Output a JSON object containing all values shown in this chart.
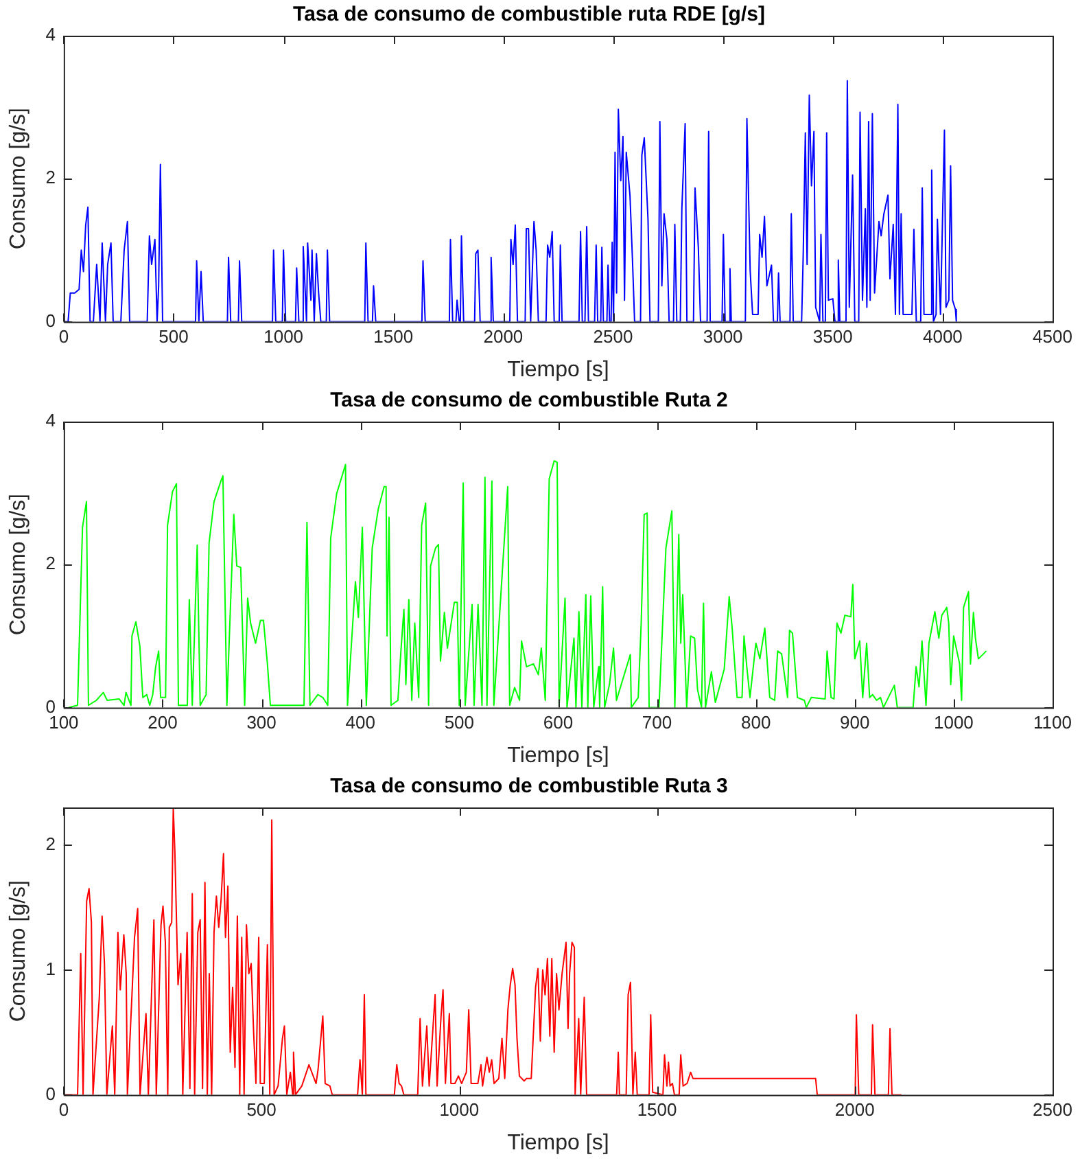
{
  "chart_data": [
    {
      "type": "line",
      "title": "Tasa de consumo de combustible ruta RDE [g/s]",
      "xlabel": "Tiempo [s]",
      "ylabel": "Consumo [g/s]",
      "xlim": [
        0,
        4500
      ],
      "xticks": [
        0,
        500,
        1000,
        1500,
        2000,
        2500,
        3000,
        3500,
        4000,
        4500
      ],
      "ylim": [
        0,
        4
      ],
      "yticks": [
        0,
        2,
        4
      ],
      "x": [
        0,
        20,
        30,
        50,
        70,
        80,
        90,
        100,
        110,
        120,
        135,
        150,
        165,
        175,
        190,
        200,
        215,
        225,
        260,
        275,
        290,
        300,
        380,
        390,
        400,
        415,
        425,
        432,
        440,
        450,
        600,
        605,
        615,
        625,
        635,
        745,
        750,
        760,
        795,
        800,
        810,
        950,
        955,
        965,
        995,
        1000,
        1010,
        1055,
        1060,
        1070,
        1085,
        1090,
        1105,
        1110,
        1125,
        1130,
        1140,
        1150,
        1160,
        1170,
        1195,
        1200,
        1210,
        1370,
        1375,
        1385,
        1405,
        1410,
        1420,
        1630,
        1635,
        1645,
        1755,
        1760,
        1770,
        1785,
        1790,
        1800,
        1805,
        1810,
        1820,
        1870,
        1875,
        1885,
        1895,
        1940,
        1945,
        1955,
        2030,
        2035,
        2045,
        2055,
        2065,
        2100,
        2105,
        2115,
        2125,
        2140,
        2150,
        2160,
        2195,
        2202,
        2212,
        2223,
        2232,
        2255,
        2260,
        2268,
        2345,
        2352,
        2360,
        2372,
        2380,
        2388,
        2416,
        2423,
        2430,
        2444,
        2449,
        2456,
        2472,
        2477,
        2484,
        2491,
        2496,
        2502,
        2509,
        2516,
        2524,
        2535,
        2545,
        2552,
        2560,
        2577,
        2588,
        2598,
        2625,
        2631,
        2642,
        2659,
        2668,
        2706,
        2713,
        2722,
        2732,
        2745,
        2755,
        2775,
        2781,
        2790,
        2806,
        2813,
        2828,
        2836,
        2866,
        2873,
        2888,
        2898,
        2928,
        2935,
        2942,
        2996,
        3002,
        3010,
        3027,
        3032,
        3038,
        3102,
        3109,
        3124,
        3135,
        3160,
        3167,
        3178,
        3189,
        3200,
        3221,
        3230,
        3248,
        3253,
        3260,
        3305,
        3311,
        3320,
        3358,
        3365,
        3375,
        3383,
        3393,
        3403,
        3414,
        3422,
        3440,
        3446,
        3455,
        3466,
        3472,
        3480,
        3500,
        3510,
        3520,
        3525,
        3532,
        3560,
        3566,
        3575,
        3590,
        3600,
        3618,
        3624,
        3635,
        3648,
        3655,
        3663,
        3670,
        3680,
        3690,
        3710,
        3720,
        3732,
        3751,
        3760,
        3775,
        3785,
        3796,
        3803,
        3811,
        3820,
        3860,
        3869,
        3880,
        3900,
        3907,
        3915,
        3945,
        3950,
        3958,
        3970,
        3976,
        3990,
        4008,
        4015,
        4028,
        4036,
        4045,
        4058,
        4062
      ],
      "series": [
        {
          "color": "#0000ff",
          "values": [
            0,
            0,
            0.4,
            0.4,
            0.45,
            1.0,
            0.7,
            1.35,
            1.6,
            0,
            0,
            0.8,
            0,
            1.1,
            0,
            0.8,
            1.1,
            0,
            0,
            1.0,
            1.4,
            0,
            0,
            1.2,
            0.8,
            1.15,
            0,
            0.5,
            2.2,
            0,
            0,
            0.85,
            0,
            0.7,
            0,
            0,
            0.9,
            0,
            0,
            0.85,
            0,
            0,
            1.0,
            0,
            0,
            1.0,
            0,
            0,
            0.75,
            0,
            0,
            1.05,
            0,
            1.1,
            0.3,
            1.0,
            0,
            0.95,
            0.4,
            0,
            0,
            1.0,
            0,
            0,
            1.1,
            0,
            0,
            0.5,
            0,
            0,
            0.85,
            0,
            0,
            1.15,
            0,
            0,
            0.3,
            0,
            0,
            1.2,
            0,
            0,
            0.95,
            1.0,
            0,
            0,
            0.9,
            0,
            0,
            1.15,
            0.8,
            1.35,
            0,
            0,
            1.3,
            1.3,
            0,
            1.4,
            1.0,
            0,
            0,
            1.07,
            0.9,
            1.26,
            0,
            0,
            1.07,
            0,
            0,
            1.26,
            0,
            0,
            1.33,
            0,
            0,
            1.07,
            0,
            0,
            1.04,
            0,
            0,
            0.79,
            0,
            0,
            1.11,
            0,
            2.37,
            0.4,
            2.97,
            1.97,
            2.59,
            0.3,
            2.37,
            1.76,
            0.89,
            0,
            0,
            2.33,
            2.57,
            1.43,
            0,
            0,
            2.8,
            0.5,
            1.51,
            1.15,
            0,
            0,
            1.36,
            0,
            0,
            1.58,
            2.77,
            0,
            0,
            1.87,
            1.04,
            0,
            0,
            2.66,
            0,
            0,
            1.22,
            0,
            0,
            0.74,
            0,
            0,
            2.84,
            0.71,
            0.1,
            0.1,
            1.22,
            0.9,
            1.47,
            0.5,
            0.79,
            0,
            0,
            0.68,
            0,
            0,
            1.51,
            0,
            0,
            0.89,
            2.64,
            0.8,
            3.17,
            1.9,
            2.66,
            0.2,
            0,
            1.22,
            0,
            0,
            2.64,
            0.3,
            0.32,
            0,
            0,
            0.86,
            0,
            0,
            3.37,
            0.2,
            2.05,
            0,
            0,
            2.93,
            0.3,
            1.58,
            0.2,
            2.8,
            0.3,
            2.91,
            0.4,
            1.4,
            1.2,
            1.5,
            1.77,
            0.6,
            1.36,
            0.1,
            3.04,
            0.1,
            1.51,
            0.1,
            0.1,
            1.29,
            0,
            0,
            1.87,
            0.1,
            0.1,
            2.12,
            0,
            0.1,
            1.43,
            0.1,
            2.68,
            0.2,
            0.3,
            2.18,
            0.3,
            0.17,
            0
          ]
        }
      ]
    },
    {
      "type": "line",
      "title": "Tasa de consumo de combustible Ruta 2",
      "xlabel": "Tiempo [s]",
      "ylabel": "Consumo [g/s]",
      "xlim": [
        100,
        1100
      ],
      "xticks": [
        100,
        200,
        300,
        400,
        500,
        600,
        700,
        800,
        900,
        1000,
        1100
      ],
      "ylim": [
        0,
        4
      ],
      "yticks": [
        0,
        2,
        4
      ],
      "x": [
        105,
        114,
        119,
        123,
        125,
        133,
        140,
        144,
        156,
        161,
        163,
        168,
        169,
        173,
        177,
        180,
        184,
        187,
        190,
        193,
        196,
        198,
        203,
        205,
        210,
        214,
        216,
        225,
        227,
        230,
        235,
        238,
        244,
        247,
        252,
        259,
        261,
        265,
        272,
        275,
        279,
        283,
        286,
        289,
        294,
        299,
        302,
        306,
        309,
        343,
        346,
        349,
        357,
        362,
        367,
        370,
        376,
        385,
        387,
        395,
        398,
        402,
        406,
        412,
        418,
        424,
        426,
        427,
        429,
        431,
        438,
        441,
        444,
        446,
        449,
        452,
        455,
        459,
        462,
        466,
        469,
        471,
        476,
        479,
        481,
        485,
        488,
        495,
        498,
        500,
        504,
        506,
        513,
        515,
        519,
        523,
        526,
        528,
        533,
        535,
        549,
        551,
        556,
        561,
        563,
        568,
        575,
        580,
        583,
        587,
        591,
        596,
        599,
        601,
        607,
        609,
        616,
        618,
        621,
        624,
        628,
        630,
        633,
        636,
        641,
        642,
        645,
        647,
        652,
        656,
        659,
        673,
        674,
        681,
        684,
        687,
        690,
        692,
        702,
        709,
        715,
        718,
        722,
        724,
        726,
        730,
        734,
        738,
        741,
        745,
        747,
        749,
        755,
        759,
        768,
        773,
        776,
        781,
        786,
        788,
        791,
        794,
        800,
        804,
        809,
        814,
        819,
        822,
        826,
        832,
        834,
        837,
        842,
        849,
        851,
        856,
        870,
        872,
        876,
        879,
        882,
        886,
        890,
        896,
        898,
        900,
        905,
        908,
        912,
        915,
        918,
        922,
        926,
        929,
        940,
        943,
        959,
        962,
        965,
        968,
        972,
        975,
        981,
        985,
        988,
        993,
        995,
        997,
        1000,
        1006,
        1008,
        1010,
        1015,
        1017,
        1020,
        1022,
        1025,
        1033
      ],
      "series": [
        {
          "color": "#00ff00",
          "values": [
            0,
            0.03,
            2.52,
            2.88,
            0.03,
            0.1,
            0.21,
            0.1,
            0.12,
            0.03,
            0.21,
            0.03,
            1.0,
            1.2,
            0.86,
            0.14,
            0.18,
            0.03,
            0.18,
            0.57,
            0.79,
            0.14,
            0.14,
            2.55,
            3.02,
            3.13,
            0.03,
            0.03,
            1.51,
            0.03,
            2.27,
            0.03,
            0.18,
            2.3,
            2.88,
            3.17,
            3.24,
            0.03,
            2.7,
            1.98,
            1.96,
            0.03,
            1.53,
            1.18,
            0.9,
            1.22,
            1.22,
            0.61,
            0.03,
            0.03,
            2.59,
            0.03,
            0.18,
            0.14,
            0.03,
            2.37,
            2.99,
            3.4,
            0.03,
            1.76,
            1.26,
            2.52,
            0.03,
            2.23,
            2.77,
            3.09,
            3.09,
            1.0,
            2.66,
            0.03,
            0.1,
            0.79,
            1.37,
            0.32,
            1.51,
            0.1,
            1.18,
            0.14,
            2.55,
            2.86,
            0.03,
            1.98,
            2.23,
            2.28,
            0.65,
            1.33,
            0.83,
            1.47,
            1.47,
            0.03,
            3.14,
            0.03,
            1.44,
            0.03,
            1.44,
            0.03,
            3.22,
            0.03,
            3.17,
            0.03,
            3.09,
            0.03,
            0.28,
            0.1,
            0.93,
            0.57,
            0.61,
            0.46,
            0.83,
            0.1,
            3.2,
            3.45,
            3.43,
            0.03,
            1.53,
            0,
            0.97,
            0,
            1.34,
            0,
            1.58,
            0,
            1.56,
            0,
            0.57,
            0,
            1.69,
            0,
            0.33,
            0.83,
            0.1,
            0.74,
            0,
            0.14,
            1.18,
            2.7,
            2.72,
            0,
            0,
            2.23,
            2.75,
            0,
            2.42,
            0.9,
            1.58,
            0,
            1.0,
            0.97,
            0.25,
            0,
            1.46,
            0,
            0.5,
            0.07,
            0.54,
            1.55,
            1.11,
            0.14,
            0.14,
            1.0,
            0.54,
            0.14,
            0.9,
            0.68,
            1.11,
            0.14,
            0.1,
            0.79,
            0.75,
            0.14,
            1.08,
            1.04,
            0.14,
            0.1,
            0,
            0.14,
            0.12,
            0.79,
            0.14,
            0.12,
            1.18,
            1.04,
            1.29,
            1.27,
            1.72,
            0.68,
            0.93,
            0.14,
            0.9,
            0.14,
            0.18,
            0.1,
            0.14,
            0,
            0.31,
            0,
            0,
            0.57,
            0.29,
            0.93,
            0.03,
            0.9,
            1.34,
            0.97,
            1.29,
            1.4,
            1.18,
            0.32,
            1.0,
            0.61,
            0.1,
            1.4,
            1.62,
            0.61,
            1.33,
            0.97,
            0.68,
            0.79
          ]
        }
      ]
    },
    {
      "type": "line",
      "title": "Tasa de consumo de combustible Ruta 3",
      "xlabel": "Tiempo [s]",
      "ylabel": "Consumo [g/s]",
      "xlim": [
        0,
        2500
      ],
      "xticks": [
        0,
        500,
        1000,
        1500,
        2000,
        2500
      ],
      "ylim": [
        0,
        2.3
      ],
      "yticks": [
        0,
        1,
        2
      ],
      "x": [
        0,
        35,
        43,
        49,
        58,
        64,
        70,
        74,
        90,
        97,
        103,
        109,
        123,
        129,
        137,
        143,
        152,
        158,
        161,
        172,
        179,
        187,
        193,
        208,
        214,
        228,
        234,
        246,
        251,
        257,
        263,
        267,
        273,
        277,
        281,
        284,
        289,
        296,
        301,
        312,
        319,
        325,
        331,
        339,
        345,
        351,
        357,
        363,
        368,
        374,
        380,
        386,
        392,
        398,
        404,
        409,
        415,
        421,
        427,
        433,
        439,
        445,
        450,
        456,
        462,
        468,
        474,
        480,
        486,
        493,
        497,
        507,
        515,
        521,
        526,
        532,
        542,
        553,
        558,
        564,
        573,
        579,
        581,
        586,
        602,
        620,
        638,
        643,
        655,
        661,
        673,
        679,
        743,
        749,
        755,
        760,
        764,
        836,
        842,
        848,
        854,
        860,
        895,
        901,
        907,
        918,
        924,
        939,
        944,
        954,
        959,
        965,
        975,
        979,
        989,
        998,
        1006,
        1018,
        1024,
        1030,
        1047,
        1055,
        1059,
        1070,
        1076,
        1082,
        1088,
        1100,
        1108,
        1115,
        1123,
        1129,
        1135,
        1141,
        1146,
        1152,
        1164,
        1170,
        1182,
        1193,
        1199,
        1205,
        1211,
        1217,
        1223,
        1229,
        1234,
        1240,
        1246,
        1252,
        1260,
        1270,
        1275,
        1279,
        1285,
        1291,
        1293,
        1302,
        1307,
        1316,
        1322,
        1398,
        1402,
        1405,
        1422,
        1427,
        1433,
        1439,
        1445,
        1450,
        1480,
        1484,
        1489,
        1515,
        1519,
        1525,
        1529,
        1533,
        1539,
        1544,
        1556,
        1560,
        1566,
        1576,
        1585,
        1591,
        1901,
        1905,
        2001,
        2004,
        2010,
        2042,
        2045,
        2051,
        2085,
        2089,
        2094,
        2118
      ],
      "series": [
        {
          "color": "#ff0000",
          "values": [
            0,
            0,
            1.13,
            0,
            1.55,
            1.65,
            1.38,
            0,
            0.78,
            1.43,
            1.05,
            0,
            0.55,
            0,
            1.3,
            0.84,
            1.28,
            0.97,
            0,
            0.76,
            1.26,
            1.49,
            0,
            0.65,
            0,
            1.4,
            0,
            1.36,
            1.51,
            1.22,
            0,
            1.34,
            1.38,
            2.3,
            1.95,
            1.55,
            0.88,
            1.13,
            0,
            1.3,
            0.05,
            1.61,
            0,
            1.3,
            1.4,
            0.05,
            1.7,
            0,
            0.97,
            0,
            1.3,
            1.59,
            1.34,
            1.57,
            1.93,
            1.26,
            1.67,
            0.34,
            0.86,
            0.22,
            1.43,
            0,
            1.26,
            0,
            1.36,
            0.97,
            1.05,
            0.51,
            0.09,
            1.26,
            0.09,
            0.09,
            1.2,
            0,
            2.2,
            0,
            0.07,
            0.45,
            0.55,
            0,
            0.18,
            0,
            0.34,
            0,
            0.07,
            0.24,
            0.09,
            0.2,
            0.63,
            0.09,
            0.07,
            0,
            0,
            0.28,
            0,
            0.8,
            0,
            0,
            0.24,
            0.09,
            0.07,
            0,
            0,
            0.61,
            0.07,
            0.55,
            0.07,
            0.8,
            0.07,
            0.63,
            0.84,
            0.09,
            0.65,
            0.09,
            0.09,
            0.15,
            0.09,
            0.18,
            0.68,
            0.09,
            0.09,
            0.24,
            0.07,
            0.3,
            0.18,
            0.28,
            0.09,
            0.13,
            0.45,
            0.13,
            0.68,
            0.88,
            1.01,
            0.88,
            0.45,
            0.15,
            0.11,
            0.13,
            0.13,
            0.86,
            1.01,
            0.43,
            1.0,
            0.8,
            1.09,
            0.47,
            1.09,
            0.34,
            0.97,
            0.68,
            0.97,
            1.22,
            0.53,
            0.97,
            1.22,
            1.18,
            0,
            0.61,
            0,
            0.78,
            0,
            0,
            0.34,
            0,
            0,
            0.8,
            0.9,
            0,
            0.34,
            0,
            0,
            0.64,
            0.02,
            0,
            0.32,
            0.07,
            0.26,
            0.07,
            0.09,
            0,
            0,
            0.32,
            0.07,
            0.09,
            0.18,
            0.13,
            0.13,
            0,
            0,
            0.64,
            0,
            0,
            0.56,
            0,
            0,
            0.53,
            0,
            0
          ]
        }
      ]
    }
  ]
}
